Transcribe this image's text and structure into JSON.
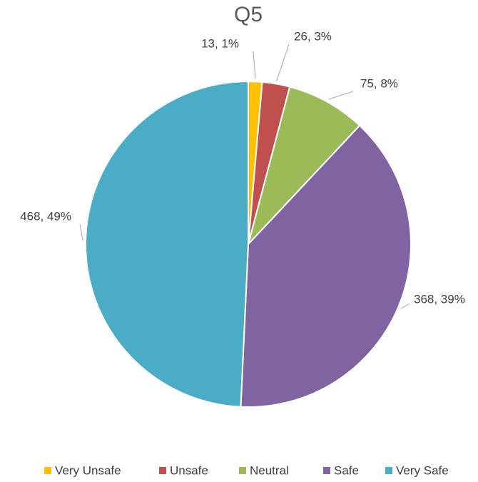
{
  "chart_data": {
    "type": "pie",
    "title": "Q5",
    "categories": [
      "Very Unsafe",
      "Unsafe",
      "Neutral",
      "Safe",
      "Very Safe"
    ],
    "values": [
      13,
      26,
      75,
      368,
      468
    ],
    "value_labels": [
      "13, 1%",
      "26, 3%",
      "75, 8%",
      "368, 39%",
      "468, 49%"
    ],
    "colors": [
      "#ffc000",
      "#c0504d",
      "#9bbb59",
      "#8064a2",
      "#4bacc6"
    ],
    "legend": "bottom"
  }
}
